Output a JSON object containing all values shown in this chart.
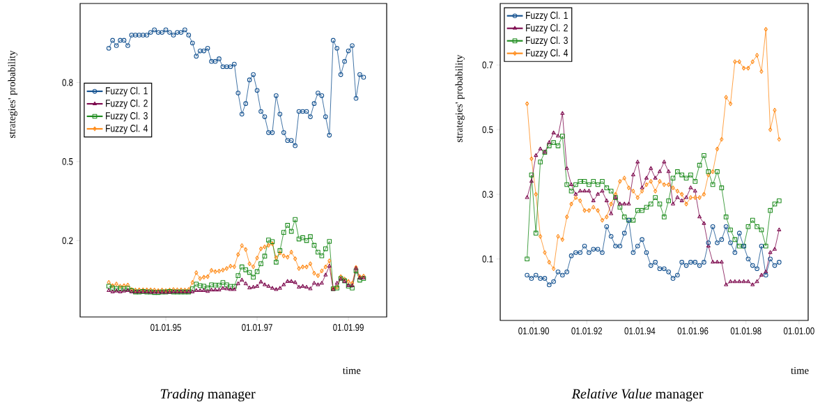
{
  "chart_data": [
    {
      "type": "line",
      "title": "*Trading* manager",
      "xlabel": "time",
      "ylabel": "strategies' probability",
      "x": [
        "1993-10",
        "1993-11",
        "1993-12",
        "1994-01",
        "1994-02",
        "1994-03",
        "1994-04",
        "1994-05",
        "1994-06",
        "1994-07",
        "1994-08",
        "1994-09",
        "1994-10",
        "1994-11",
        "1994-12",
        "1995-01",
        "1995-02",
        "1995-03",
        "1995-04",
        "1995-05",
        "1995-06",
        "1995-07",
        "1995-08",
        "1995-09",
        "1995-10",
        "1995-11",
        "1995-12",
        "1996-01",
        "1996-02",
        "1996-03",
        "1996-04",
        "1996-05",
        "1996-06",
        "1996-07",
        "1996-08",
        "1996-09",
        "1996-10",
        "1996-11",
        "1996-12",
        "1997-01",
        "1997-02",
        "1997-03",
        "1997-04",
        "1997-05",
        "1997-06",
        "1997-07",
        "1997-08",
        "1997-09",
        "1997-10",
        "1997-11",
        "1997-12",
        "1998-01",
        "1998-02",
        "1998-03",
        "1998-04",
        "1998-05",
        "1998-06",
        "1998-07",
        "1998-08",
        "1998-09",
        "1998-10",
        "1998-11",
        "1998-12",
        "1999-01",
        "1999-02",
        "1999-03",
        "1999-04",
        "1999-05"
      ],
      "series": [
        {
          "name": "Fuzzy Cl. 1",
          "color": "#12508f",
          "marker": "circle",
          "values": [
            0.93,
            0.96,
            0.94,
            0.96,
            0.96,
            0.94,
            0.98,
            0.98,
            0.98,
            0.98,
            0.98,
            0.99,
            1.0,
            0.99,
            0.99,
            1.0,
            0.99,
            0.98,
            0.99,
            0.99,
            1.0,
            0.98,
            0.95,
            0.9,
            0.92,
            0.92,
            0.93,
            0.88,
            0.88,
            0.89,
            0.86,
            0.86,
            0.86,
            0.87,
            0.76,
            0.68,
            0.72,
            0.81,
            0.83,
            0.77,
            0.69,
            0.67,
            0.61,
            0.61,
            0.75,
            0.68,
            0.61,
            0.58,
            0.58,
            0.56,
            0.69,
            0.69,
            0.69,
            0.67,
            0.72,
            0.76,
            0.75,
            0.67,
            0.6,
            0.96,
            0.93,
            0.83,
            0.88,
            0.92,
            0.94,
            0.74,
            0.83,
            0.82
          ]
        },
        {
          "name": "Fuzzy Cl. 2",
          "color": "#7d0a4e",
          "marker": "triangle",
          "values": [
            0.01,
            0.005,
            0.008,
            0.005,
            0.008,
            0.01,
            0.005,
            0.005,
            0.005,
            0.005,
            0.005,
            0.004,
            0.004,
            0.004,
            0.004,
            0.004,
            0.004,
            0.005,
            0.005,
            0.005,
            0.005,
            0.005,
            0.005,
            0.01,
            0.01,
            0.01,
            0.007,
            0.012,
            0.012,
            0.012,
            0.019,
            0.017,
            0.014,
            0.014,
            0.036,
            0.05,
            0.036,
            0.02,
            0.023,
            0.026,
            0.043,
            0.032,
            0.026,
            0.019,
            0.014,
            0.019,
            0.032,
            0.045,
            0.045,
            0.041,
            0.023,
            0.026,
            0.023,
            0.017,
            0.038,
            0.032,
            0.038,
            0.069,
            0.103,
            0.014,
            0.038,
            0.054,
            0.045,
            0.029,
            0.029,
            0.094,
            0.058,
            0.058
          ]
        },
        {
          "name": "Fuzzy Cl. 3",
          "color": "#1b8a1b",
          "marker": "square",
          "values": [
            0.027,
            0.02,
            0.017,
            0.019,
            0.017,
            0.019,
            0.01,
            0.005,
            0.005,
            0.007,
            0.005,
            0.005,
            0.003,
            0.003,
            0.005,
            0.005,
            0.007,
            0.005,
            0.005,
            0.005,
            0.005,
            0.005,
            0.017,
            0.035,
            0.029,
            0.027,
            0.02,
            0.032,
            0.031,
            0.031,
            0.041,
            0.032,
            0.026,
            0.026,
            0.067,
            0.1,
            0.089,
            0.079,
            0.061,
            0.082,
            0.112,
            0.141,
            0.202,
            0.196,
            0.118,
            0.162,
            0.231,
            0.258,
            0.235,
            0.28,
            0.206,
            0.211,
            0.2,
            0.215,
            0.182,
            0.156,
            0.142,
            0.169,
            0.197,
            0.017,
            0.02,
            0.056,
            0.047,
            0.027,
            0.02,
            0.085,
            0.05,
            0.056
          ]
        },
        {
          "name": "Fuzzy Cl. 4",
          "color": "#ff8c1a",
          "marker": "diamond",
          "values": [
            0.041,
            0.029,
            0.035,
            0.027,
            0.029,
            0.031,
            0.014,
            0.012,
            0.013,
            0.013,
            0.013,
            0.013,
            0.012,
            0.01,
            0.012,
            0.01,
            0.012,
            0.014,
            0.013,
            0.013,
            0.012,
            0.014,
            0.041,
            0.078,
            0.056,
            0.061,
            0.063,
            0.087,
            0.082,
            0.084,
            0.088,
            0.094,
            0.103,
            0.101,
            0.147,
            0.181,
            0.166,
            0.112,
            0.101,
            0.134,
            0.169,
            0.176,
            0.182,
            0.188,
            0.135,
            0.153,
            0.142,
            0.137,
            0.156,
            0.131,
            0.094,
            0.1,
            0.1,
            0.112,
            0.076,
            0.067,
            0.085,
            0.1,
            0.123,
            0.019,
            0.023,
            0.063,
            0.054,
            0.045,
            0.038,
            0.098,
            0.063,
            0.065
          ]
        }
      ],
      "xlim": [
        "1993-02-15",
        "1999-11-03"
      ],
      "ylim": [
        -0.09,
        1.1
      ],
      "xticks": [
        {
          "value": "1995-01-01",
          "label": "01.01.95"
        },
        {
          "value": "1997-01-01",
          "label": "01.01.97"
        },
        {
          "value": "1999-01-01",
          "label": "01.01.99"
        }
      ],
      "yticks": [
        0.2,
        0.5,
        0.8
      ],
      "legend": "left"
    },
    {
      "type": "line",
      "title": "*Relative Value* manager",
      "xlabel": "time",
      "ylabel": "strategies' probability",
      "x": [
        "1989-10",
        "1989-12",
        "1990-02",
        "1990-04",
        "1990-06",
        "1990-08",
        "1990-10",
        "1990-12",
        "1991-02",
        "1991-04",
        "1991-06",
        "1991-08",
        "1991-10",
        "1991-12",
        "1992-02",
        "1992-04",
        "1992-06",
        "1992-08",
        "1992-10",
        "1992-12",
        "1993-02",
        "1993-04",
        "1993-06",
        "1993-08",
        "1993-10",
        "1993-12",
        "1994-02",
        "1994-04",
        "1994-06",
        "1994-08",
        "1994-10",
        "1994-12",
        "1995-02",
        "1995-04",
        "1995-06",
        "1995-08",
        "1995-10",
        "1995-12",
        "1996-02",
        "1996-04",
        "1996-06",
        "1996-08",
        "1996-10",
        "1996-12",
        "1997-02",
        "1997-04",
        "1997-06",
        "1997-08",
        "1997-10",
        "1997-12",
        "1998-02",
        "1998-04",
        "1998-06",
        "1998-08",
        "1998-10",
        "1998-12",
        "1999-02",
        "1999-04"
      ],
      "series": [
        {
          "name": "Fuzzy Cl. 1",
          "color": "#12508f",
          "marker": "circle",
          "values": [
            0.05,
            0.04,
            0.05,
            0.04,
            0.04,
            0.02,
            0.03,
            0.06,
            0.05,
            0.06,
            0.11,
            0.12,
            0.12,
            0.14,
            0.12,
            0.13,
            0.13,
            0.12,
            0.2,
            0.17,
            0.14,
            0.14,
            0.18,
            0.22,
            0.12,
            0.14,
            0.16,
            0.12,
            0.08,
            0.09,
            0.07,
            0.07,
            0.06,
            0.04,
            0.05,
            0.09,
            0.08,
            0.09,
            0.09,
            0.08,
            0.09,
            0.15,
            0.2,
            0.15,
            0.16,
            0.2,
            0.15,
            0.12,
            0.18,
            0.14,
            0.1,
            0.08,
            0.07,
            0.14,
            0.05,
            0.1,
            0.08,
            0.09
          ]
        },
        {
          "name": "Fuzzy Cl. 2",
          "color": "#7d0a4e",
          "marker": "triangle",
          "values": [
            0.29,
            0.34,
            0.42,
            0.44,
            0.43,
            0.46,
            0.49,
            0.48,
            0.55,
            0.38,
            0.33,
            0.3,
            0.31,
            0.31,
            0.31,
            0.28,
            0.3,
            0.31,
            0.28,
            0.24,
            0.29,
            0.27,
            0.27,
            0.27,
            0.36,
            0.4,
            0.32,
            0.35,
            0.38,
            0.35,
            0.37,
            0.4,
            0.37,
            0.27,
            0.29,
            0.28,
            0.29,
            0.32,
            0.31,
            0.23,
            0.21,
            0.14,
            0.09,
            0.09,
            0.09,
            0.02,
            0.03,
            0.03,
            0.03,
            0.03,
            0.03,
            0.02,
            0.03,
            0.05,
            0.06,
            0.12,
            0.13,
            0.19
          ]
        },
        {
          "name": "Fuzzy Cl. 3",
          "color": "#1b8a1b",
          "marker": "square",
          "values": [
            0.1,
            0.36,
            0.18,
            0.4,
            0.43,
            0.45,
            0.46,
            0.45,
            0.48,
            0.33,
            0.31,
            0.33,
            0.34,
            0.34,
            0.33,
            0.34,
            0.33,
            0.34,
            0.32,
            0.31,
            0.29,
            0.26,
            0.23,
            0.22,
            0.22,
            0.25,
            0.25,
            0.26,
            0.27,
            0.29,
            0.27,
            0.23,
            0.28,
            0.35,
            0.37,
            0.36,
            0.35,
            0.36,
            0.34,
            0.39,
            0.42,
            0.37,
            0.33,
            0.37,
            0.32,
            0.23,
            0.19,
            0.16,
            0.14,
            0.14,
            0.2,
            0.22,
            0.2,
            0.19,
            0.14,
            0.25,
            0.27,
            0.28
          ]
        },
        {
          "name": "Fuzzy Cl. 4",
          "color": "#ff8c1a",
          "marker": "diamond",
          "values": [
            0.58,
            0.41,
            0.3,
            0.17,
            0.12,
            0.09,
            0.07,
            0.17,
            0.16,
            0.23,
            0.27,
            0.29,
            0.28,
            0.25,
            0.25,
            0.26,
            0.25,
            0.22,
            0.23,
            0.27,
            0.3,
            0.34,
            0.35,
            0.32,
            0.31,
            0.29,
            0.31,
            0.33,
            0.34,
            0.31,
            0.34,
            0.33,
            0.33,
            0.32,
            0.31,
            0.3,
            0.27,
            0.29,
            0.29,
            0.29,
            0.3,
            0.36,
            0.37,
            0.44,
            0.47,
            0.6,
            0.58,
            0.71,
            0.71,
            0.69,
            0.69,
            0.71,
            0.73,
            0.68,
            0.81,
            0.5,
            0.56,
            0.47
          ]
        }
      ],
      "xlim": [
        "1988-09-27",
        "2000-05-05"
      ],
      "ylim": [
        -0.09,
        0.89
      ],
      "xticks": [
        {
          "value": "1990-01-01",
          "label": "01.01.90"
        },
        {
          "value": "1992-01-01",
          "label": "01.01.92"
        },
        {
          "value": "1994-01-01",
          "label": "01.01.94"
        },
        {
          "value": "1996-01-01",
          "label": "01.01.96"
        },
        {
          "value": "1998-01-01",
          "label": "01.01.98"
        },
        {
          "value": "2000-01-01",
          "label": "01.01.00"
        }
      ],
      "yticks": [
        0.1,
        0.3,
        0.5,
        0.7
      ],
      "legend": "top left"
    }
  ]
}
